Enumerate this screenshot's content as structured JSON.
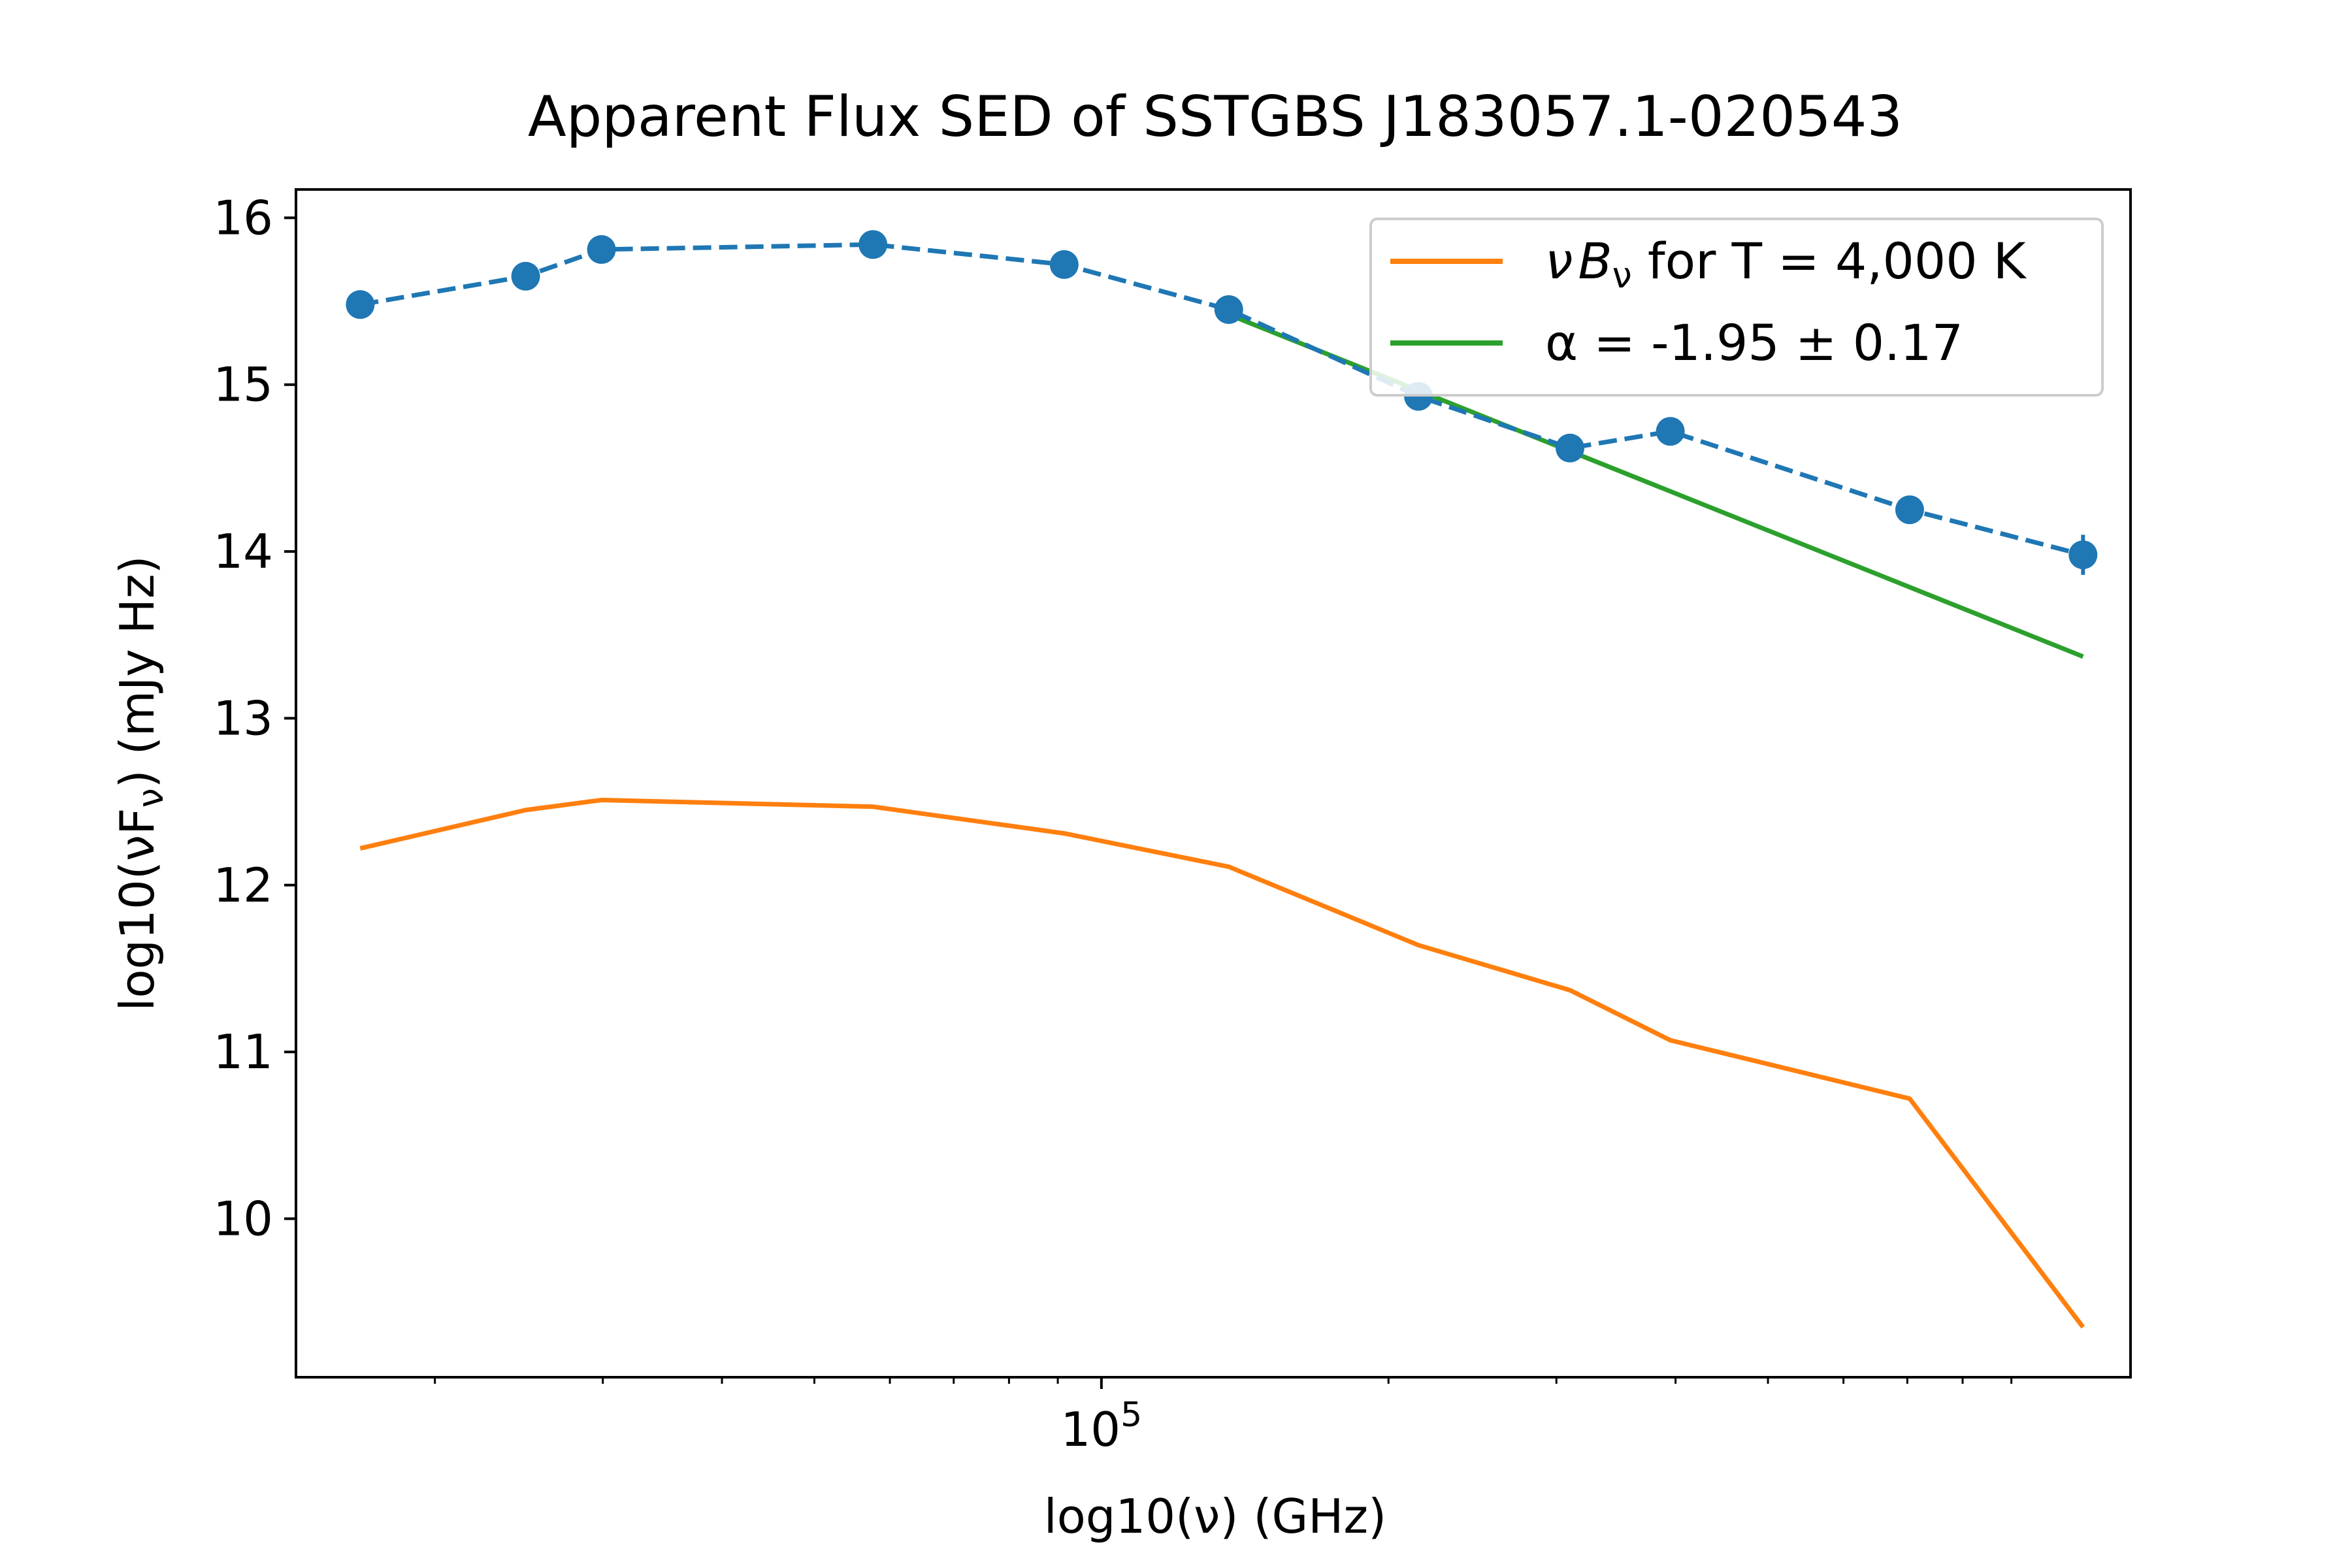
{
  "chart_data": {
    "type": "line",
    "title": "Apparent Flux SED of SSTGBS J183057.1-020543",
    "xlabel": "log10(ν) (GHz)",
    "ylabel": "log10(νF",
    "ylabel_sub": "ν",
    "ylabel_end": ") (mJy Hz)",
    "xscale": "log",
    "xlim": [
      14300,
      1200000
    ],
    "ylim": [
      9.05,
      16.17
    ],
    "yticks": [
      10,
      11,
      12,
      13,
      14,
      15,
      16
    ],
    "xticks_major": [
      100000
    ],
    "xtick_major_base": "10",
    "xtick_major_exp": "5",
    "xticks_minor": [
      20000,
      30000,
      40000,
      50000,
      60000,
      70000,
      80000,
      90000,
      200000,
      300000,
      400000,
      500000,
      600000,
      700000,
      800000,
      900000
    ],
    "grid": false,
    "legend_position": "top-right",
    "series": [
      {
        "key": "observed",
        "color": "#1f77b4",
        "style": "dashed-markers",
        "x": [
          16700,
          24900,
          29900,
          57600,
          91400,
          136000,
          215000,
          310000,
          395000,
          704000,
          1070000
        ],
        "y": [
          15.48,
          15.65,
          15.81,
          15.84,
          15.72,
          15.45,
          14.93,
          14.62,
          14.72,
          14.25,
          13.98
        ],
        "yerr": [
          0,
          0,
          0,
          0,
          0,
          0,
          0,
          0,
          0,
          0,
          0.12
        ]
      },
      {
        "key": "blackbody",
        "name_prefix": "ν",
        "name_var": "B",
        "name_sub": "ν",
        "name_suffix": " for T = 4,000 K",
        "color": "#ff7f0e",
        "x": [
          16700,
          24900,
          29900,
          57600,
          91400,
          136000,
          215000,
          310000,
          395000,
          704000,
          1070000
        ],
        "y": [
          12.22,
          12.45,
          12.51,
          12.47,
          12.31,
          12.11,
          11.64,
          11.37,
          11.07,
          10.72,
          9.35
        ]
      },
      {
        "key": "fit",
        "name": "α = -1.95 ± 0.17",
        "color": "#2ca02c",
        "x": [
          136000,
          1070000
        ],
        "y": [
          15.42,
          13.37
        ]
      }
    ]
  }
}
